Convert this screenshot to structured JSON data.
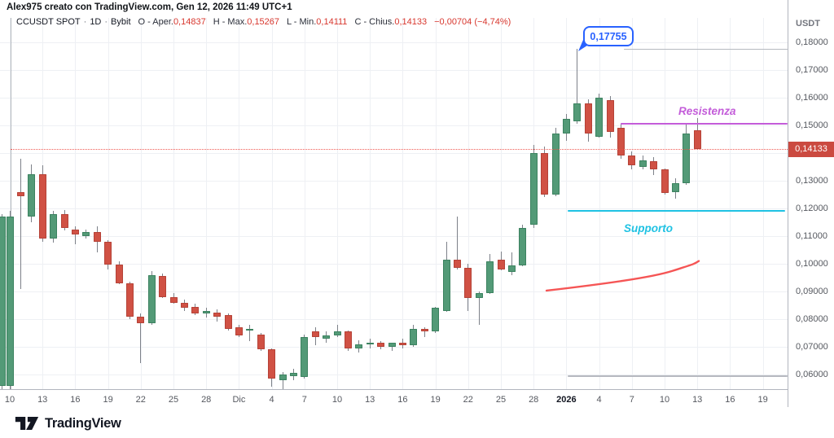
{
  "header": {
    "watermark": "Alex975 creato con TradingView.com, Gen 12, 2026 11:49 UTC+1",
    "symbol": "CCUSDT SPOT",
    "separator": "·",
    "interval": "1D",
    "exchange": "Bybit",
    "ohlc": [
      {
        "label": "O - Aper.",
        "value": "0,14837"
      },
      {
        "label": "H - Max.",
        "value": "0,15267"
      },
      {
        "label": "L - Min.",
        "value": "0,14111"
      },
      {
        "label": "C - Chius.",
        "value": "0,14133"
      }
    ],
    "change": "−0,00704 (−4,74%)"
  },
  "chart_data": {
    "type": "candlestick",
    "title": "CCUSDT SPOT · 1D · Bybit",
    "currency_label": "USDT",
    "ylim": [
      0.054,
      0.188
    ],
    "grid": true,
    "y_ticks": [
      "0,18000",
      "0,17000",
      "0,16000",
      "0,15000",
      "0,14000",
      "0,13000",
      "0,12000",
      "0,11000",
      "0,10000",
      "0,09000",
      "0,08000",
      "0,07000",
      "0,06000"
    ],
    "y_tick_values": [
      0.18,
      0.17,
      0.16,
      0.15,
      0.14,
      0.13,
      0.12,
      0.11,
      0.1,
      0.09,
      0.08,
      0.07,
      0.06
    ],
    "x_ticks": [
      "10",
      "13",
      "16",
      "19",
      "22",
      "25",
      "28",
      "Dic",
      "4",
      "7",
      "10",
      "13",
      "16",
      "19",
      "22",
      "25",
      "28",
      "2026",
      "4",
      "7",
      "10",
      "13",
      "16",
      "19"
    ],
    "x_tick_bold": "2026",
    "candles": [
      [
        0.056,
        0.118,
        0.054,
        0.117
      ],
      [
        0.056,
        0.119,
        0.054,
        0.117
      ],
      [
        0.126,
        0.138,
        0.091,
        0.1245
      ],
      [
        0.117,
        0.136,
        0.115,
        0.1325
      ],
      [
        0.1325,
        0.1355,
        0.108,
        0.109
      ],
      [
        0.109,
        0.119,
        0.1075,
        0.118
      ],
      [
        0.118,
        0.1195,
        0.112,
        0.113
      ],
      [
        0.1125,
        0.1135,
        0.107,
        0.1105
      ],
      [
        0.11,
        0.1125,
        0.109,
        0.1115
      ],
      [
        0.1115,
        0.1135,
        0.104,
        0.108
      ],
      [
        0.108,
        0.1085,
        0.098,
        0.0997
      ],
      [
        0.0997,
        0.101,
        0.0925,
        0.093
      ],
      [
        0.093,
        0.0935,
        0.08,
        0.081
      ],
      [
        0.081,
        0.082,
        0.064,
        0.0785
      ],
      [
        0.0785,
        0.0975,
        0.078,
        0.096
      ],
      [
        0.0955,
        0.0965,
        0.0875,
        0.088
      ],
      [
        0.088,
        0.0895,
        0.0855,
        0.086
      ],
      [
        0.086,
        0.087,
        0.083,
        0.084
      ],
      [
        0.0845,
        0.0855,
        0.0815,
        0.082
      ],
      [
        0.082,
        0.084,
        0.0805,
        0.083
      ],
      [
        0.0825,
        0.0835,
        0.079,
        0.081
      ],
      [
        0.0815,
        0.082,
        0.076,
        0.0765
      ],
      [
        0.077,
        0.078,
        0.0735,
        0.074
      ],
      [
        0.0762,
        0.078,
        0.072,
        0.0765
      ],
      [
        0.0745,
        0.075,
        0.0685,
        0.069
      ],
      [
        0.069,
        0.0695,
        0.0555,
        0.0585
      ],
      [
        0.058,
        0.061,
        0.0545,
        0.06
      ],
      [
        0.0595,
        0.062,
        0.058,
        0.0605
      ],
      [
        0.059,
        0.0745,
        0.0585,
        0.0735
      ],
      [
        0.0755,
        0.077,
        0.0705,
        0.0735
      ],
      [
        0.073,
        0.0755,
        0.0715,
        0.074
      ],
      [
        0.074,
        0.078,
        0.0735,
        0.0755
      ],
      [
        0.0755,
        0.076,
        0.0685,
        0.0695
      ],
      [
        0.0695,
        0.0725,
        0.068,
        0.071
      ],
      [
        0.071,
        0.073,
        0.0695,
        0.0715
      ],
      [
        0.0715,
        0.072,
        0.069,
        0.07
      ],
      [
        0.07,
        0.0715,
        0.0685,
        0.0715
      ],
      [
        0.0715,
        0.073,
        0.0695,
        0.0705
      ],
      [
        0.0705,
        0.078,
        0.07,
        0.0765
      ],
      [
        0.0765,
        0.077,
        0.0735,
        0.0755
      ],
      [
        0.0755,
        0.0845,
        0.075,
        0.084
      ],
      [
        0.083,
        0.108,
        0.0825,
        0.1015
      ],
      [
        0.1015,
        0.117,
        0.098,
        0.0985
      ],
      [
        0.0985,
        0.1,
        0.083,
        0.0875
      ],
      [
        0.0875,
        0.09,
        0.078,
        0.0895
      ],
      [
        0.0895,
        0.1035,
        0.089,
        0.101
      ],
      [
        0.1015,
        0.1045,
        0.0975,
        0.098
      ],
      [
        0.097,
        0.104,
        0.096,
        0.0995
      ],
      [
        0.0995,
        0.114,
        0.099,
        0.113
      ],
      [
        0.114,
        0.143,
        0.113,
        0.14
      ],
      [
        0.14,
        0.1425,
        0.124,
        0.125
      ],
      [
        0.125,
        0.149,
        0.1245,
        0.147
      ],
      [
        0.147,
        0.154,
        0.1445,
        0.1525
      ],
      [
        0.1515,
        0.17755,
        0.1505,
        0.158
      ],
      [
        0.158,
        0.1595,
        0.144,
        0.147
      ],
      [
        0.146,
        0.1615,
        0.1455,
        0.16
      ],
      [
        0.159,
        0.1605,
        0.1455,
        0.1475
      ],
      [
        0.149,
        0.1505,
        0.138,
        0.139
      ],
      [
        0.139,
        0.1405,
        0.134,
        0.1355
      ],
      [
        0.135,
        0.139,
        0.134,
        0.1375
      ],
      [
        0.137,
        0.1385,
        0.132,
        0.134
      ],
      [
        0.134,
        0.1345,
        0.125,
        0.1255
      ],
      [
        0.126,
        0.131,
        0.1235,
        0.129
      ],
      [
        0.129,
        0.1503,
        0.1285,
        0.147
      ],
      [
        0.14837,
        0.15267,
        0.14111,
        0.14133
      ]
    ],
    "last_price": 0.14133,
    "last_price_label": "0,14133",
    "colors": {
      "up": "#539a77",
      "down": "#d05144",
      "resistance": "#c35cd9",
      "support": "#1fc2e3",
      "trend": "#f55555",
      "gray_level": "#b6b9c0",
      "callout_blue": "#2962ff",
      "last_price_red": "#cb4a40"
    },
    "annotations": {
      "callout": {
        "text": "0,17755",
        "price": 0.17755
      },
      "resistance": {
        "label": "Resistenza",
        "price": 0.1505
      },
      "support": {
        "label": "Supporto",
        "price": 0.119
      },
      "gray_level_top": 0.1775,
      "gray_level_bottom": 0.0593,
      "trend_curve": {
        "start_price": 0.0903,
        "end_price": 0.101
      }
    }
  },
  "logo": {
    "text": "TradingView"
  }
}
